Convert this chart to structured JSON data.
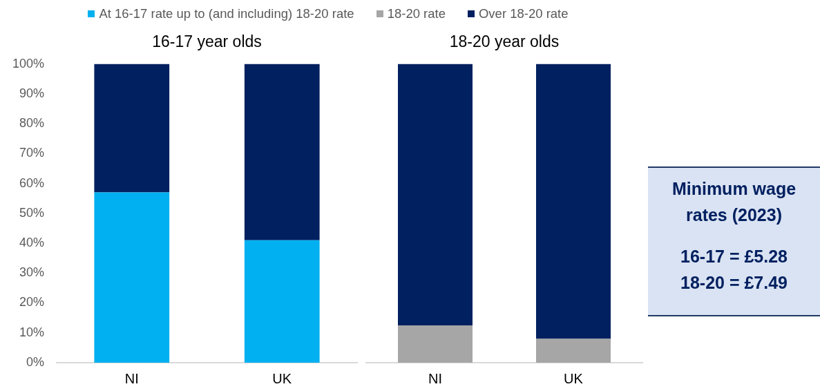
{
  "chart_data": [
    {
      "type": "bar",
      "title": "16-17 year olds",
      "categories": [
        "NI",
        "UK"
      ],
      "stacked": true,
      "series": [
        {
          "name": "At 16-17 rate up to (and including) 18-20 rate",
          "color": "#00b0f0",
          "values": [
            57,
            41
          ]
        },
        {
          "name": "Over 18-20 rate",
          "color": "#002060",
          "values": [
            43,
            59
          ]
        }
      ],
      "ylim": [
        0,
        100
      ],
      "yticks": [
        {
          "value": 0,
          "label": "0%"
        },
        {
          "value": 10,
          "label": "10%"
        },
        {
          "value": 20,
          "label": "20%"
        },
        {
          "value": 30,
          "label": "30%"
        },
        {
          "value": 40,
          "label": "40%"
        },
        {
          "value": 50,
          "label": "50%"
        },
        {
          "value": 60,
          "label": "60%"
        },
        {
          "value": 70,
          "label": "70%"
        },
        {
          "value": 80,
          "label": "80%"
        },
        {
          "value": 90,
          "label": "90%"
        },
        {
          "value": 100,
          "label": "100%"
        }
      ],
      "legend": "top"
    },
    {
      "type": "bar",
      "title": "18-20 year olds",
      "categories": [
        "NI",
        "UK"
      ],
      "stacked": true,
      "series": [
        {
          "name": "18-20 rate",
          "color": "#a6a6a6",
          "values": [
            12.5,
            8
          ]
        },
        {
          "name": "Over 18-20 rate",
          "color": "#002060",
          "values": [
            87.5,
            92
          ]
        }
      ],
      "ylim": [
        0,
        100
      ],
      "tick_labels": "x",
      "legend": "top"
    },
    {
      "type": "other",
      "title": "Minimum wage rates (2023)",
      "annotations": [
        "16-17 = £5.28",
        "18-20 = £7.49"
      ]
    }
  ]
}
